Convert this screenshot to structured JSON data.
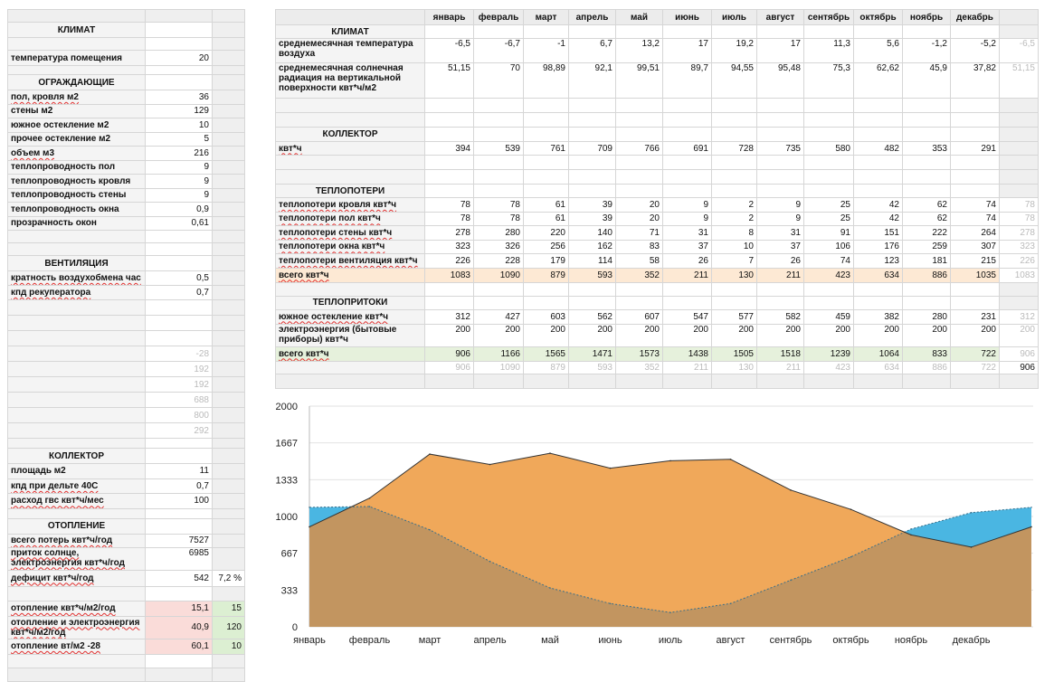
{
  "left": {
    "climate_title": "КЛИМАТ",
    "room_temp": {
      "label": "температура помещения",
      "value": "20"
    },
    "envelope_title": "ОГРАЖДАЮЩИЕ",
    "envelope": [
      {
        "label": "пол, кровля м2",
        "value": "36"
      },
      {
        "label": "стены м2",
        "value": "129"
      },
      {
        "label": "южное остекление м2",
        "value": "10"
      },
      {
        "label": "прочее остекление м2",
        "value": "5"
      },
      {
        "label": "объем м3",
        "value": "216"
      },
      {
        "label": "теплопроводность пол",
        "value": "9"
      },
      {
        "label": "теплопроводность кровля",
        "value": "9"
      },
      {
        "label": "теплопроводность стены",
        "value": "9"
      },
      {
        "label": "теплопроводность окна",
        "value": "0,9"
      },
      {
        "label": "прозрачность окон",
        "value": "0,61"
      }
    ],
    "vent_title": "ВЕНТИЛЯЦИЯ",
    "vent": [
      {
        "label": "кратность воздухобмена час",
        "value": "0,5"
      },
      {
        "label": "кпд рекуператора",
        "value": "0,7"
      }
    ],
    "grey_values": [
      "-28",
      "192",
      "192",
      "688",
      "800",
      "292"
    ],
    "collector_title": "КОЛЛЕКТОР",
    "collector": [
      {
        "label": "площадь м2",
        "value": "11"
      },
      {
        "label": "кпд при дельте 40С",
        "value": "0,7"
      },
      {
        "label": "расход гвс квт*ч/мес",
        "value": "100"
      }
    ],
    "heating_title": "ОТОПЛЕНИЕ",
    "heat_losses": {
      "label": "всего потерь квт*ч/год",
      "value": "7527"
    },
    "heat_gain": {
      "label": "приток солнце, электроэнергия квт*ч/год",
      "value": "6985"
    },
    "deficit": {
      "label": "дефицит квт*ч/год",
      "value": "542",
      "pct": "7,2 %"
    },
    "results": [
      {
        "label": "отопление квт*ч/м2/год",
        "value": "15,1",
        "target": "15"
      },
      {
        "label": "отопление и электроэнергия квт*ч/м2/год",
        "value": "40,9",
        "target": "120"
      },
      {
        "label": "отопление вт/м2 -28",
        "value": "60,1",
        "target": "10"
      }
    ]
  },
  "right": {
    "months": [
      "январь",
      "февраль",
      "март",
      "апрель",
      "май",
      "июнь",
      "июль",
      "август",
      "сентябрь",
      "октябрь",
      "ноябрь",
      "декабрь"
    ],
    "climate_title": "КЛИМАТ",
    "temp": {
      "label": "среднемесячная температура воздуха",
      "values": [
        "-6,5",
        "-6,7",
        "-1",
        "6,7",
        "13,2",
        "17",
        "19,2",
        "17",
        "11,3",
        "5,6",
        "-1,2",
        "-5,2"
      ],
      "extra": "-6,5"
    },
    "solar": {
      "label": "среднемесячная солнечная радиация на вертикальной поверхности квт*ч/м2",
      "values": [
        "51,15",
        "70",
        "98,89",
        "92,1",
        "99,51",
        "89,7",
        "94,55",
        "95,48",
        "75,3",
        "62,62",
        "45,9",
        "37,82"
      ],
      "extra": "51,15"
    },
    "collector_title": "КОЛЛЕКТОР",
    "collector": {
      "label": "квт*ч",
      "values": [
        "394",
        "539",
        "761",
        "709",
        "766",
        "691",
        "728",
        "735",
        "580",
        "482",
        "353",
        "291"
      ]
    },
    "losses_title": "ТЕПЛОПОТЕРИ",
    "losses": [
      {
        "label": "теплопотери кровля квт*ч",
        "values": [
          "78",
          "78",
          "61",
          "39",
          "20",
          "9",
          "2",
          "9",
          "25",
          "42",
          "62",
          "74"
        ],
        "extra": "78"
      },
      {
        "label": "теплопотери пол квт*ч",
        "values": [
          "78",
          "78",
          "61",
          "39",
          "20",
          "9",
          "2",
          "9",
          "25",
          "42",
          "62",
          "74"
        ],
        "extra": "78"
      },
      {
        "label": "теплопотери стены квт*ч",
        "values": [
          "278",
          "280",
          "220",
          "140",
          "71",
          "31",
          "8",
          "31",
          "91",
          "151",
          "222",
          "264"
        ],
        "extra": "278"
      },
      {
        "label": "теплопотери окна квт*ч",
        "values": [
          "323",
          "326",
          "256",
          "162",
          "83",
          "37",
          "10",
          "37",
          "106",
          "176",
          "259",
          "307"
        ],
        "extra": "323"
      },
      {
        "label": "теплопотери вентиляция квт*ч",
        "values": [
          "226",
          "228",
          "179",
          "114",
          "58",
          "26",
          "7",
          "26",
          "74",
          "123",
          "181",
          "215"
        ],
        "extra": "226"
      }
    ],
    "losses_total": {
      "label": "всего квт*ч",
      "values": [
        "1083",
        "1090",
        "879",
        "593",
        "352",
        "211",
        "130",
        "211",
        "423",
        "634",
        "886",
        "1035"
      ],
      "extra": "1083"
    },
    "gains_title": "ТЕПЛОПРИТОКИ",
    "gains": [
      {
        "label": "южное остекление квт*ч",
        "values": [
          "312",
          "427",
          "603",
          "562",
          "607",
          "547",
          "577",
          "582",
          "459",
          "382",
          "280",
          "231"
        ],
        "extra": "312"
      },
      {
        "label": "электроэнергия (бытовые приборы) квт*ч",
        "values": [
          "200",
          "200",
          "200",
          "200",
          "200",
          "200",
          "200",
          "200",
          "200",
          "200",
          "200",
          "200"
        ],
        "extra": "200"
      }
    ],
    "gains_total": {
      "label": "всего квт*ч",
      "values": [
        "906",
        "1166",
        "1565",
        "1471",
        "1573",
        "1438",
        "1505",
        "1518",
        "1239",
        "1064",
        "833",
        "722"
      ],
      "extra": "906"
    },
    "grey_row": {
      "values": [
        "906",
        "1090",
        "879",
        "593",
        "352",
        "211",
        "130",
        "211",
        "423",
        "634",
        "886",
        "722"
      ],
      "extra": "906"
    }
  },
  "chart_data": {
    "type": "area",
    "categories": [
      "январь",
      "февраль",
      "март",
      "апрель",
      "май",
      "июнь",
      "июль",
      "август",
      "сентябрь",
      "октябрь",
      "ноябрь",
      "декабрь"
    ],
    "y_ticks": [
      "0",
      "333",
      "667",
      "1000",
      "1333",
      "1667",
      "2000"
    ],
    "ylim": [
      0,
      2000
    ],
    "grid": true,
    "series": [
      {
        "values": [
          1083,
          1090,
          879,
          593,
          352,
          211,
          130,
          211,
          423,
          634,
          886,
          1035
        ],
        "extra": 1083,
        "color": "#4ab6e2"
      },
      {
        "values": [
          906,
          1166,
          1565,
          1471,
          1573,
          1438,
          1505,
          1518,
          1239,
          1064,
          833,
          722
        ],
        "extra": 906,
        "color": "#f0a85a"
      }
    ],
    "overlap_color": "#c29560"
  }
}
